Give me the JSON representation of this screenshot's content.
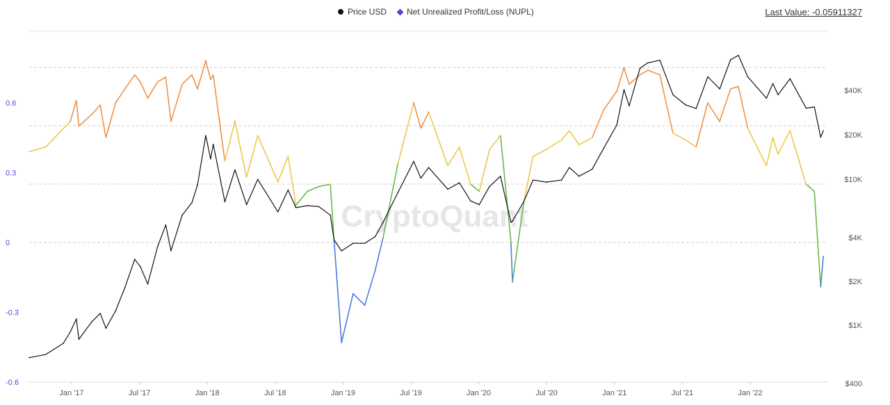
{
  "legend": {
    "price_label": "Price USD",
    "nupl_label": "Net Unrealized Profit/Loss (NUPL)"
  },
  "last_value": "Last Value: -0.05911327",
  "watermark": "CryptoQuant",
  "colors": {
    "price": "#111111",
    "nupl_marker": "#5b3fe0",
    "capitulation": "#4a7be0",
    "hope_fear": "#63bb46",
    "optimism_anxiety": "#ecc94b",
    "belief_denial": "#ef9245",
    "euphoria_greed": "#e14b4b"
  },
  "chart_data": {
    "type": "line",
    "xlabel": "",
    "ylabel": "",
    "x_ticks": [
      "Jan '17",
      "Jul '17",
      "Jan '18",
      "Jul '18",
      "Jan '19",
      "Jul '19",
      "Jan '20",
      "Jul '20",
      "Jan '21",
      "Jul '21",
      "Jan '22"
    ],
    "y_left_ticks": [
      "0.6",
      "0.3",
      "0",
      "-0.3",
      "-0.6"
    ],
    "y_left_range": [
      -0.6,
      0.8
    ],
    "y_right_ticks": [
      "$40K",
      "$20K",
      "$10K",
      "$4K",
      "$2K",
      "$1K",
      "$400"
    ],
    "y_right_scale": "log",
    "y_right_range": [
      400,
      100000
    ],
    "grid": "horizontal dashed",
    "legend_position": "top",
    "series": [
      {
        "name": "Price USD",
        "axis": "right",
        "points": [
          [
            "2016-09-01",
            600
          ],
          [
            "2016-10-15",
            630
          ],
          [
            "2016-12-01",
            750
          ],
          [
            "2016-12-20",
            900
          ],
          [
            "2017-01-05",
            1100
          ],
          [
            "2017-01-12",
            800
          ],
          [
            "2017-02-15",
            1050
          ],
          [
            "2017-03-10",
            1200
          ],
          [
            "2017-03-25",
            950
          ],
          [
            "2017-04-20",
            1250
          ],
          [
            "2017-05-15",
            1800
          ],
          [
            "2017-06-10",
            2800
          ],
          [
            "2017-06-25",
            2500
          ],
          [
            "2017-07-15",
            1900
          ],
          [
            "2017-08-10",
            3400
          ],
          [
            "2017-09-01",
            4800
          ],
          [
            "2017-09-15",
            3200
          ],
          [
            "2017-10-15",
            5600
          ],
          [
            "2017-11-10",
            6800
          ],
          [
            "2017-11-25",
            9000
          ],
          [
            "2017-12-17",
            19500
          ],
          [
            "2017-12-30",
            13500
          ],
          [
            "2018-01-06",
            17000
          ],
          [
            "2018-02-06",
            6900
          ],
          [
            "2018-03-05",
            11400
          ],
          [
            "2018-04-05",
            6600
          ],
          [
            "2018-05-05",
            9800
          ],
          [
            "2018-06-28",
            5900
          ],
          [
            "2018-07-25",
            8300
          ],
          [
            "2018-08-15",
            6300
          ],
          [
            "2018-09-15",
            6500
          ],
          [
            "2018-10-15",
            6400
          ],
          [
            "2018-11-15",
            5600
          ],
          [
            "2018-11-25",
            3800
          ],
          [
            "2018-12-15",
            3200
          ],
          [
            "2019-01-15",
            3600
          ],
          [
            "2019-02-15",
            3600
          ],
          [
            "2019-03-15",
            4000
          ],
          [
            "2019-04-05",
            5000
          ],
          [
            "2019-05-15",
            8000
          ],
          [
            "2019-06-26",
            13000
          ],
          [
            "2019-07-15",
            10000
          ],
          [
            "2019-08-05",
            11800
          ],
          [
            "2019-09-25",
            8400
          ],
          [
            "2019-10-26",
            9300
          ],
          [
            "2019-11-25",
            7000
          ],
          [
            "2019-12-18",
            6600
          ],
          [
            "2020-01-15",
            8800
          ],
          [
            "2020-02-13",
            10300
          ],
          [
            "2020-03-12",
            5000
          ],
          [
            "2020-03-16",
            5100
          ],
          [
            "2020-04-15",
            6900
          ],
          [
            "2020-05-10",
            9700
          ],
          [
            "2020-06-15",
            9400
          ],
          [
            "2020-07-25",
            9700
          ],
          [
            "2020-08-15",
            11800
          ],
          [
            "2020-09-10",
            10300
          ],
          [
            "2020-10-15",
            11500
          ],
          [
            "2020-11-15",
            16000
          ],
          [
            "2020-12-20",
            23000
          ],
          [
            "2021-01-08",
            40000
          ],
          [
            "2021-01-22",
            31000
          ],
          [
            "2021-02-20",
            56000
          ],
          [
            "2021-03-13",
            61000
          ],
          [
            "2021-04-14",
            63500
          ],
          [
            "2021-05-19",
            37000
          ],
          [
            "2021-06-22",
            31500
          ],
          [
            "2021-07-20",
            29800
          ],
          [
            "2021-08-20",
            49000
          ],
          [
            "2021-09-21",
            40500
          ],
          [
            "2021-10-20",
            64000
          ],
          [
            "2021-11-10",
            68500
          ],
          [
            "2021-12-05",
            49000
          ],
          [
            "2022-01-24",
            35000
          ],
          [
            "2022-02-10",
            44000
          ],
          [
            "2022-02-24",
            37000
          ],
          [
            "2022-03-28",
            47500
          ],
          [
            "2022-05-10",
            30000
          ],
          [
            "2022-06-01",
            30500
          ],
          [
            "2022-06-18",
            19000
          ],
          [
            "2022-06-25",
            21000
          ]
        ]
      },
      {
        "name": "Net Unrealized Profit/Loss (NUPL)",
        "axis": "left",
        "points": [
          [
            "2016-09-01",
            0.39
          ],
          [
            "2016-10-15",
            0.41
          ],
          [
            "2016-11-20",
            0.47
          ],
          [
            "2016-12-20",
            0.52
          ],
          [
            "2017-01-05",
            0.61
          ],
          [
            "2017-01-12",
            0.5
          ],
          [
            "2017-02-15",
            0.55
          ],
          [
            "2017-03-10",
            0.59
          ],
          [
            "2017-03-25",
            0.45
          ],
          [
            "2017-04-20",
            0.6
          ],
          [
            "2017-05-15",
            0.66
          ],
          [
            "2017-06-10",
            0.72
          ],
          [
            "2017-06-25",
            0.69
          ],
          [
            "2017-07-15",
            0.62
          ],
          [
            "2017-08-10",
            0.69
          ],
          [
            "2017-09-01",
            0.71
          ],
          [
            "2017-09-15",
            0.52
          ],
          [
            "2017-10-15",
            0.68
          ],
          [
            "2017-11-10",
            0.72
          ],
          [
            "2017-11-25",
            0.66
          ],
          [
            "2017-12-17",
            0.78
          ],
          [
            "2017-12-30",
            0.7
          ],
          [
            "2018-01-06",
            0.72
          ],
          [
            "2018-02-06",
            0.35
          ],
          [
            "2018-03-05",
            0.52
          ],
          [
            "2018-04-05",
            0.28
          ],
          [
            "2018-05-05",
            0.46
          ],
          [
            "2018-06-28",
            0.26
          ],
          [
            "2018-07-25",
            0.37
          ],
          [
            "2018-08-15",
            0.16
          ],
          [
            "2018-09-15",
            0.22
          ],
          [
            "2018-10-15",
            0.24
          ],
          [
            "2018-11-15",
            0.25
          ],
          [
            "2018-11-25",
            0.01
          ],
          [
            "2018-12-15",
            -0.43
          ],
          [
            "2019-01-15",
            -0.22
          ],
          [
            "2019-02-15",
            -0.27
          ],
          [
            "2019-03-15",
            -0.12
          ],
          [
            "2019-04-05",
            0.02
          ],
          [
            "2019-05-15",
            0.34
          ],
          [
            "2019-06-26",
            0.6
          ],
          [
            "2019-07-15",
            0.49
          ],
          [
            "2019-08-05",
            0.56
          ],
          [
            "2019-09-25",
            0.33
          ],
          [
            "2019-10-26",
            0.41
          ],
          [
            "2019-11-25",
            0.25
          ],
          [
            "2019-12-18",
            0.22
          ],
          [
            "2020-01-15",
            0.4
          ],
          [
            "2020-02-13",
            0.46
          ],
          [
            "2020-03-12",
            0.0
          ],
          [
            "2020-03-16",
            -0.17
          ],
          [
            "2020-04-15",
            0.17
          ],
          [
            "2020-05-10",
            0.37
          ],
          [
            "2020-06-15",
            0.4
          ],
          [
            "2020-07-25",
            0.44
          ],
          [
            "2020-08-15",
            0.48
          ],
          [
            "2020-09-10",
            0.42
          ],
          [
            "2020-10-15",
            0.45
          ],
          [
            "2020-11-15",
            0.57
          ],
          [
            "2020-12-20",
            0.65
          ],
          [
            "2021-01-08",
            0.75
          ],
          [
            "2021-01-22",
            0.68
          ],
          [
            "2021-02-20",
            0.72
          ],
          [
            "2021-03-13",
            0.74
          ],
          [
            "2021-04-14",
            0.72
          ],
          [
            "2021-05-19",
            0.47
          ],
          [
            "2021-06-22",
            0.44
          ],
          [
            "2021-07-20",
            0.41
          ],
          [
            "2021-08-20",
            0.6
          ],
          [
            "2021-09-21",
            0.52
          ],
          [
            "2021-10-20",
            0.66
          ],
          [
            "2021-11-10",
            0.67
          ],
          [
            "2021-12-05",
            0.49
          ],
          [
            "2022-01-24",
            0.33
          ],
          [
            "2022-02-10",
            0.45
          ],
          [
            "2022-02-24",
            0.38
          ],
          [
            "2022-03-28",
            0.48
          ],
          [
            "2022-05-10",
            0.25
          ],
          [
            "2022-06-01",
            0.22
          ],
          [
            "2022-06-18",
            -0.19
          ],
          [
            "2022-06-25",
            -0.06
          ]
        ]
      }
    ],
    "nupl_color_bands": [
      {
        "min": -1,
        "max": 0,
        "color_key": "capitulation"
      },
      {
        "min": 0,
        "max": 0.25,
        "color_key": "hope_fear"
      },
      {
        "min": 0.25,
        "max": 0.5,
        "color_key": "optimism_anxiety"
      },
      {
        "min": 0.5,
        "max": 0.75,
        "color_key": "belief_denial"
      },
      {
        "min": 0.75,
        "max": 1,
        "color_key": "euphoria_greed"
      }
    ]
  }
}
